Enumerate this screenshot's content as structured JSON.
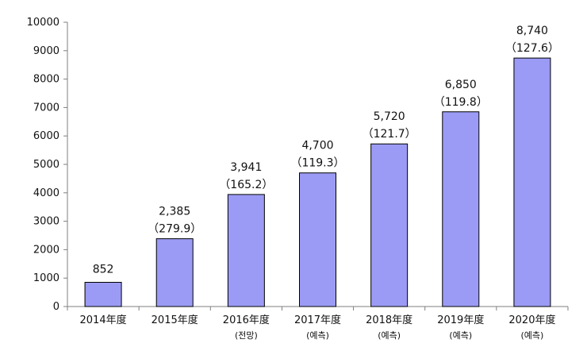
{
  "chart_data": {
    "type": "bar",
    "title": "",
    "xlabel": "",
    "ylabel": "",
    "ylim": [
      0,
      10000
    ],
    "yticks": [
      0,
      1000,
      2000,
      3000,
      4000,
      5000,
      6000,
      7000,
      8000,
      9000,
      10000
    ],
    "grid": false,
    "bar_color": "#9b9bf5",
    "categories": [
      "2014年度",
      "2015年度",
      "2016年度",
      "2017年度",
      "2018年度",
      "2019年度",
      "2020年度"
    ],
    "category_notes": [
      "",
      "",
      "(전망)",
      "(예측)",
      "(예측)",
      "(예측)",
      "(예측)"
    ],
    "values": [
      852,
      2385,
      3941,
      4700,
      5720,
      6850,
      8740
    ],
    "value_labels": [
      "852",
      "2,385",
      "3,941",
      "4,700",
      "5,720",
      "6,850",
      "8,740"
    ],
    "growth_labels": [
      "",
      "（279.9）",
      "（165.2）",
      "（119.3）",
      "（121.7）",
      "（119.8）",
      "（127.6）"
    ]
  }
}
